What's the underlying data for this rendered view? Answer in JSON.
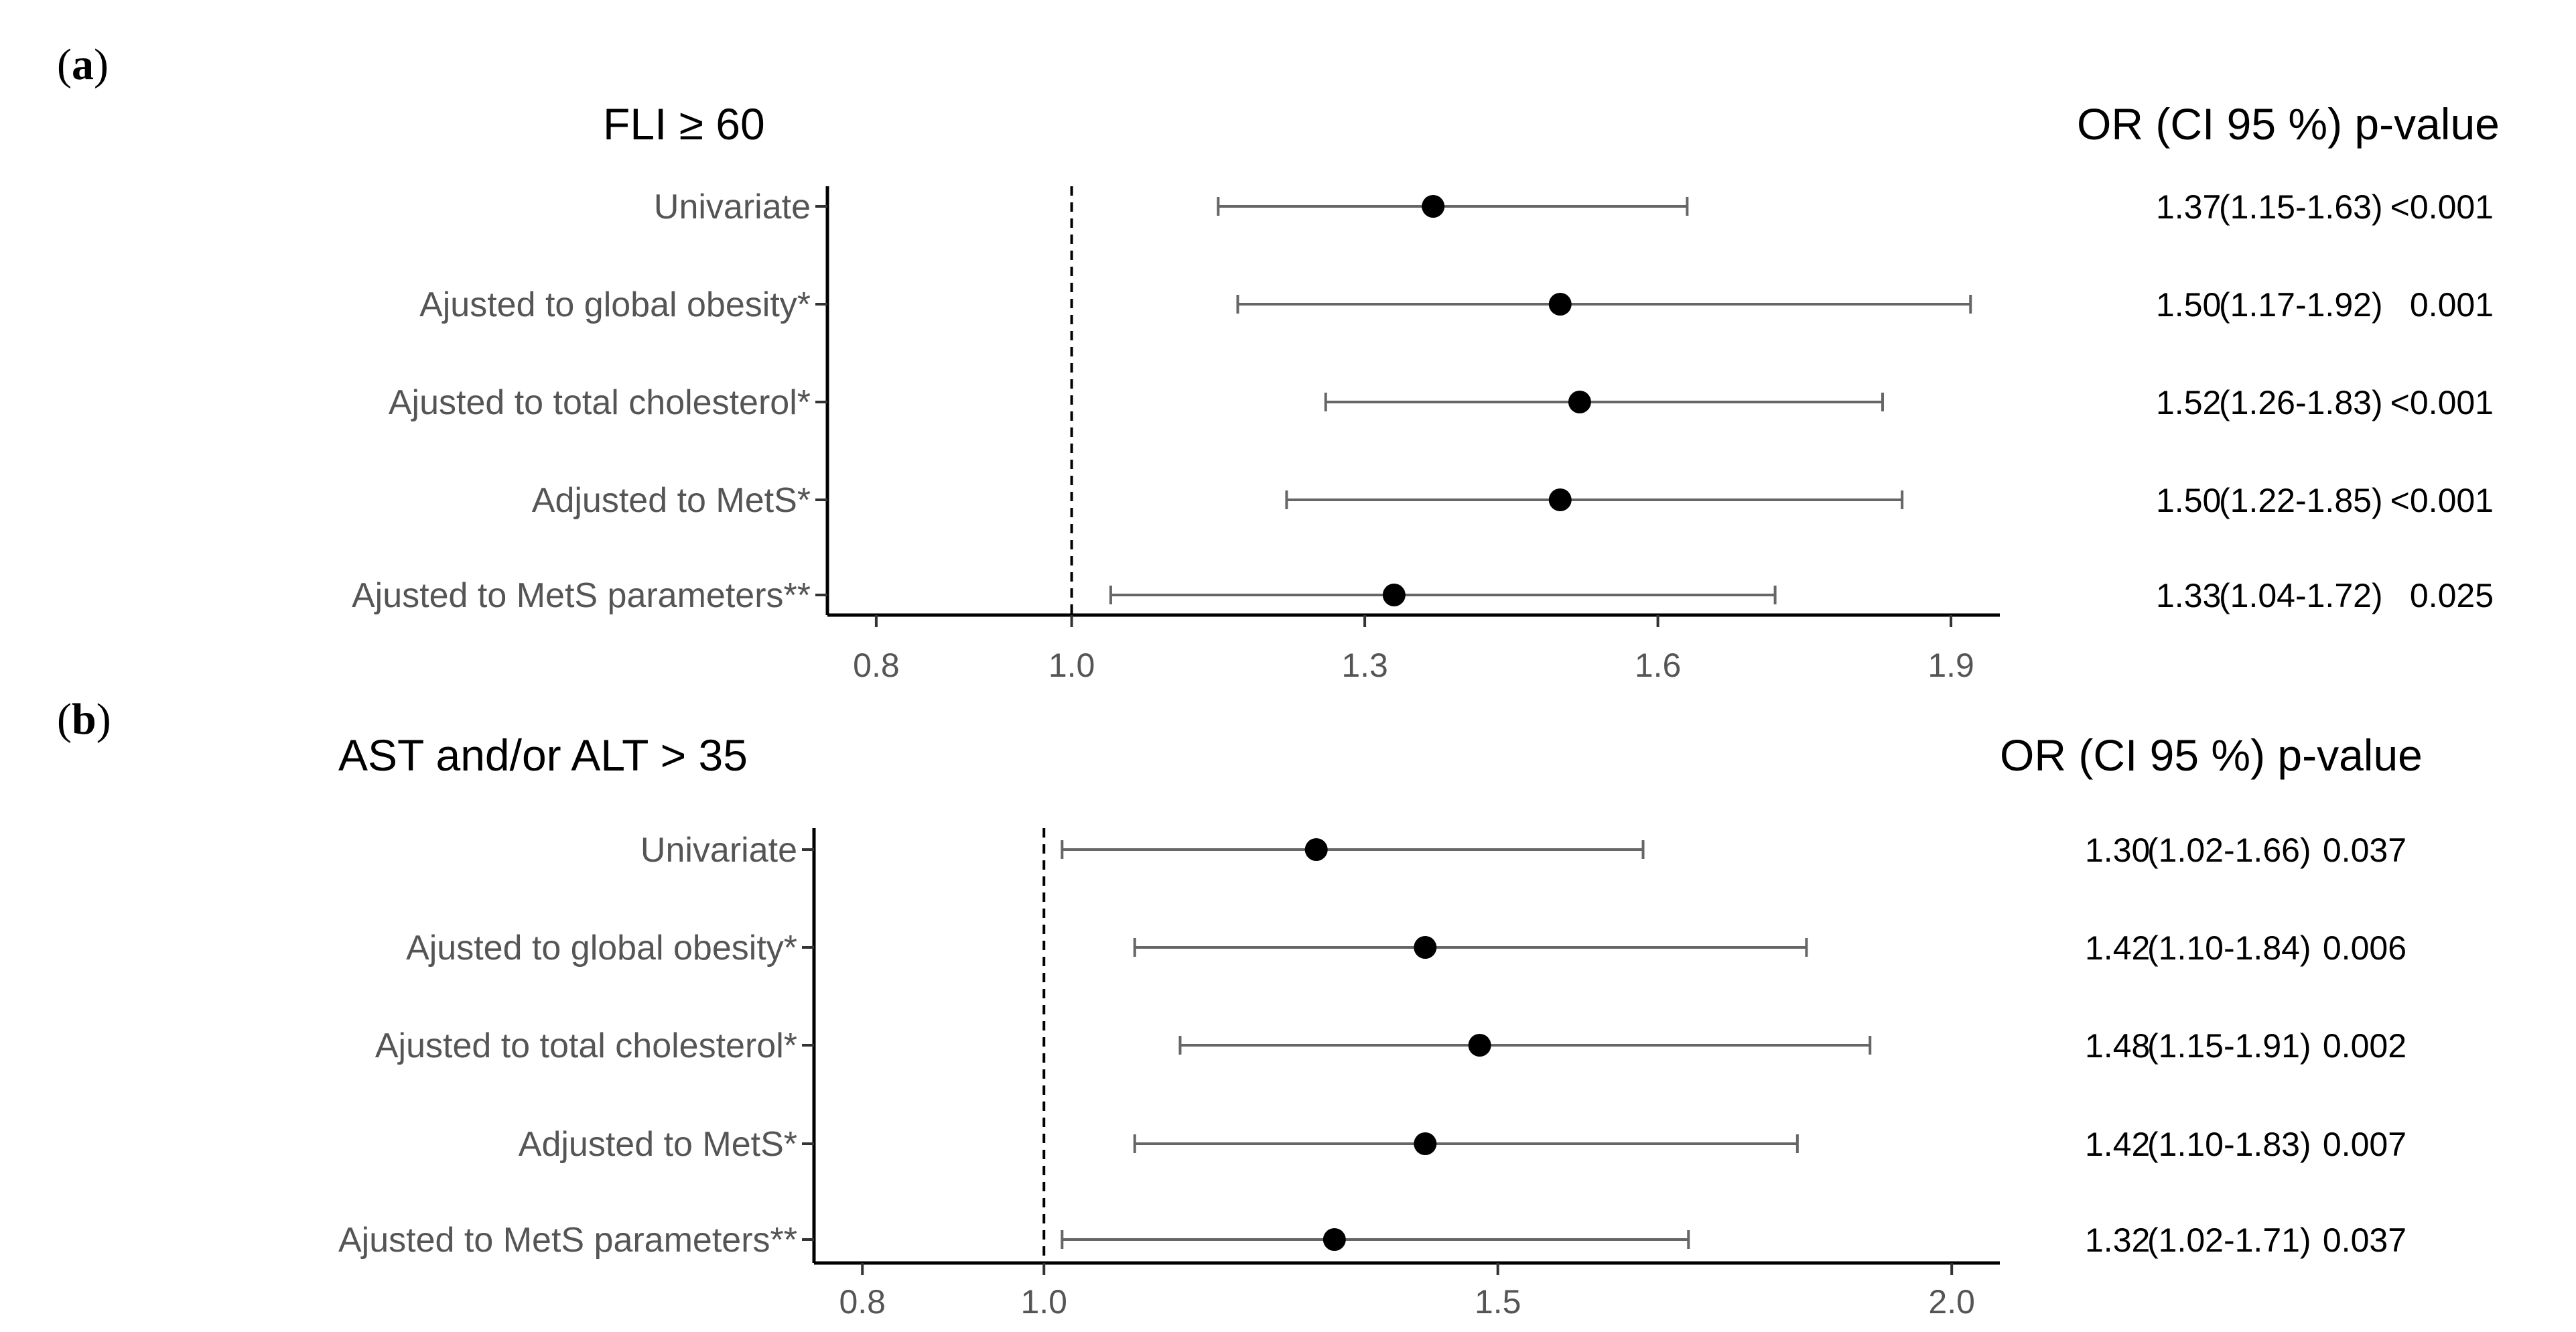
{
  "chart_data": [
    {
      "type": "forest",
      "panel_label": "a",
      "title": "FLI ≥ 60",
      "results_header": "OR (CI 95 %) p-value",
      "reference_line": 1.0,
      "xlim": [
        0.75,
        1.95
      ],
      "x_ticks": [
        0.8,
        1.0,
        1.3,
        1.6,
        1.9
      ],
      "x_tick_labels": [
        "0.8",
        "1.0",
        "1.3",
        "1.6",
        "1.9"
      ],
      "rows": [
        {
          "label": "Univariate",
          "or": 1.37,
          "ci_low": 1.15,
          "ci_high": 1.63,
          "or_text": "1.37",
          "ci_text": "(1.15-1.63)",
          "p_text": "<0.001"
        },
        {
          "label": "Ajusted to global obesity*",
          "or": 1.5,
          "ci_low": 1.17,
          "ci_high": 1.92,
          "or_text": "1.50",
          "ci_text": "(1.17-1.92)",
          "p_text": "0.001"
        },
        {
          "label": "Ajusted to total cholesterol*",
          "or": 1.52,
          "ci_low": 1.26,
          "ci_high": 1.83,
          "or_text": "1.52",
          "ci_text": "(1.26-1.83)",
          "p_text": "<0.001"
        },
        {
          "label": "Adjusted to MetS*",
          "or": 1.5,
          "ci_low": 1.22,
          "ci_high": 1.85,
          "or_text": "1.50",
          "ci_text": "(1.22-1.85)",
          "p_text": "<0.001"
        },
        {
          "label": "Ajusted to MetS parameters**",
          "or": 1.33,
          "ci_low": 1.04,
          "ci_high": 1.72,
          "or_text": "1.33",
          "ci_text": "(1.04-1.72)",
          "p_text": "0.025"
        }
      ]
    },
    {
      "type": "forest",
      "panel_label": "b",
      "title": "AST and/or ALT > 35",
      "results_header": "OR (CI 95 %) p-value",
      "reference_line": 1.0,
      "xlim": [
        0.75,
        2.05
      ],
      "x_ticks": [
        0.8,
        1.0,
        1.5,
        2.0
      ],
      "x_tick_labels": [
        "0.8",
        "1.0",
        "1.5",
        "2.0"
      ],
      "rows": [
        {
          "label": "Univariate",
          "or": 1.3,
          "ci_low": 1.02,
          "ci_high": 1.66,
          "or_text": "1.30",
          "ci_text": "(1.02-1.66)",
          "p_text": "0.037"
        },
        {
          "label": "Ajusted to global obesity*",
          "or": 1.42,
          "ci_low": 1.1,
          "ci_high": 1.84,
          "or_text": "1.42",
          "ci_text": "(1.10-1.84)",
          "p_text": "0.006"
        },
        {
          "label": "Ajusted to total cholesterol*",
          "or": 1.48,
          "ci_low": 1.15,
          "ci_high": 1.91,
          "or_text": "1.48",
          "ci_text": "(1.15-1.91)",
          "p_text": "0.002"
        },
        {
          "label": "Adjusted to MetS*",
          "or": 1.42,
          "ci_low": 1.1,
          "ci_high": 1.83,
          "or_text": "1.42",
          "ci_text": "(1.10-1.83)",
          "p_text": "0.007"
        },
        {
          "label": "Ajusted to MetS parameters**",
          "or": 1.32,
          "ci_low": 1.02,
          "ci_high": 1.71,
          "or_text": "1.32",
          "ci_text": "(1.02-1.71)",
          "p_text": "0.037"
        }
      ]
    }
  ]
}
